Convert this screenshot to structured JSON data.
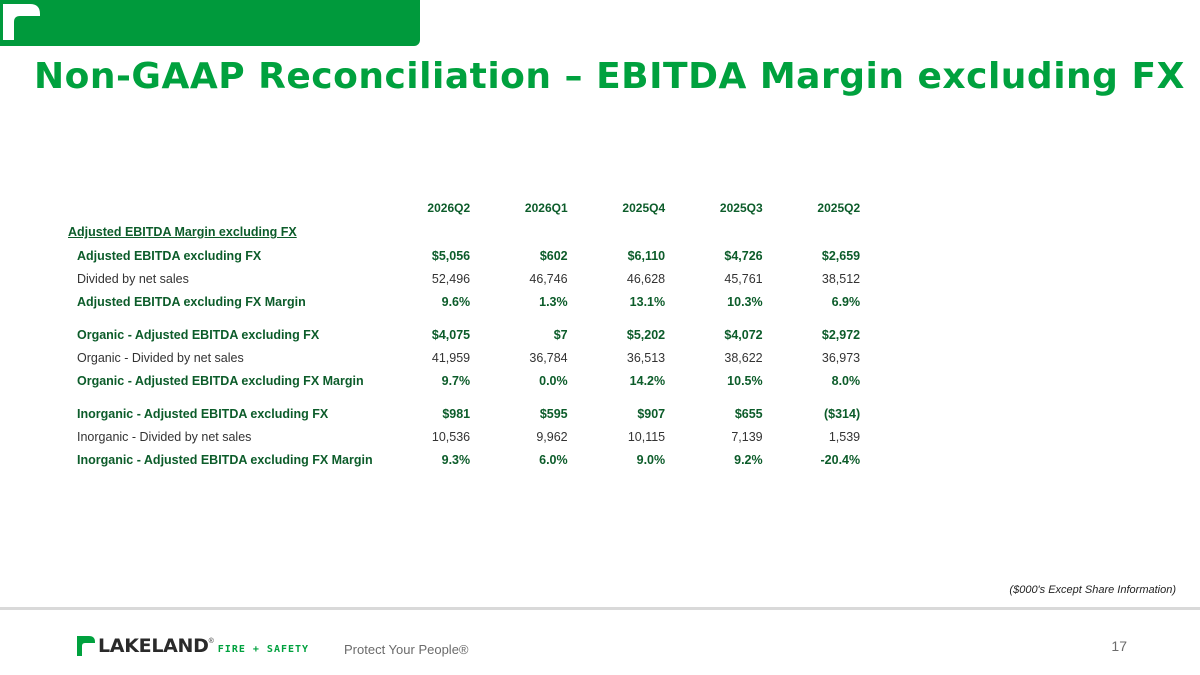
{
  "header": {
    "title": "Non-GAAP Reconciliation – EBITDA Margin excluding FX"
  },
  "table": {
    "columns": [
      "2026Q2",
      "2026Q1",
      "2025Q4",
      "2025Q3",
      "2025Q2"
    ],
    "section_title": "Adjusted EBITDA Margin excluding FX",
    "rows": [
      {
        "label": "Adjusted EBITDA excluding FX",
        "values": [
          "$5,056",
          "$602",
          "$6,110",
          "$4,726",
          "$2,659"
        ]
      },
      {
        "label": "Divided by net sales",
        "values": [
          "52,496",
          "46,746",
          "46,628",
          "45,761",
          "38,512"
        ]
      },
      {
        "label": "Adjusted EBITDA excluding FX Margin",
        "values": [
          "9.6%",
          "1.3%",
          "13.1%",
          "10.3%",
          "6.9%"
        ]
      },
      {
        "label": "Organic - Adjusted EBITDA excluding FX",
        "values": [
          "$4,075",
          "$7",
          "$5,202",
          "$4,072",
          "$2,972"
        ]
      },
      {
        "label": "Organic - Divided by net sales",
        "values": [
          "41,959",
          "36,784",
          "36,513",
          "38,622",
          "36,973"
        ]
      },
      {
        "label": "Organic - Adjusted EBITDA  excluding FX Margin",
        "values": [
          "9.7%",
          "0.0%",
          "14.2%",
          "10.5%",
          "8.0%"
        ]
      },
      {
        "label": "Inorganic - Adjusted EBITDA excluding FX",
        "values": [
          "$981",
          "$595",
          "$907",
          "$655",
          "($314)"
        ]
      },
      {
        "label": "Inorganic - Divided by net sales",
        "values": [
          "10,536",
          "9,962",
          "10,115",
          "7,139",
          "1,539"
        ]
      },
      {
        "label": "Inorganic - Adjusted EBITDA  excluding FX Margin",
        "values": [
          "9.3%",
          "6.0%",
          "9.0%",
          "9.2%",
          "-20.4%"
        ]
      }
    ]
  },
  "footnote": "($000's Except Share Information)",
  "footer": {
    "logo_text": "LAKELAND",
    "logo_registered": "®",
    "logo_subtext": "FIRE + SAFETY",
    "tagline": "Protect Your People®",
    "page_number": "17"
  },
  "colors": {
    "brand_green": "#009a3c",
    "title_green": "#00a13e",
    "text_dark_green": "#0c5c2a"
  }
}
